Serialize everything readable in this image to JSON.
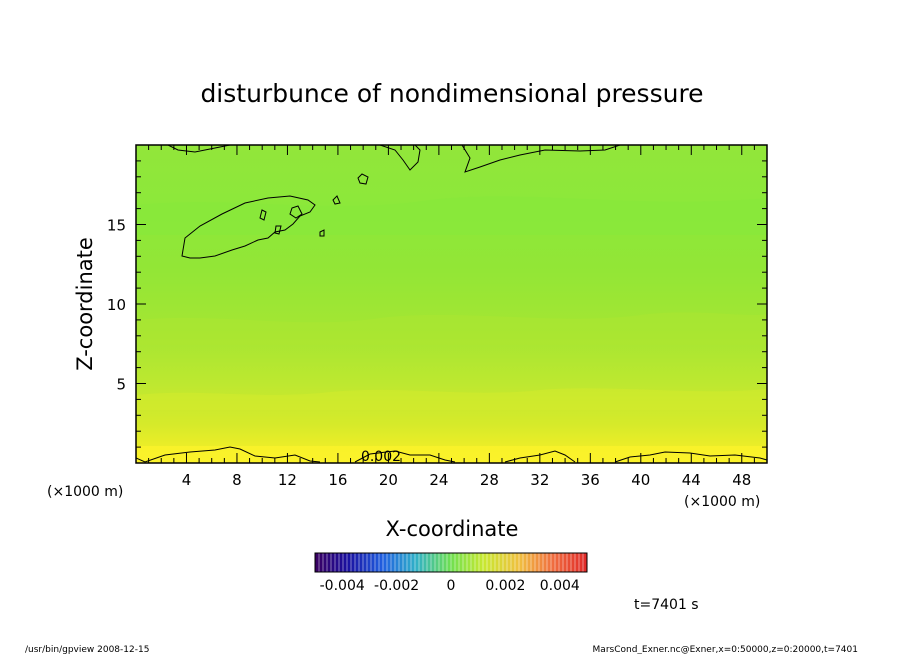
{
  "chart_data": {
    "type": "heatmap",
    "title": "disturbunce of nondimensional pressure",
    "xlabel": "X-coordinate",
    "ylabel": "Z-coordinate",
    "x_unit_left": "(×1000 m)",
    "x_unit_right": "(×1000 m)",
    "xlim": [
      0,
      50
    ],
    "ylim": [
      0,
      20
    ],
    "x_ticks": [
      "4",
      "8",
      "12",
      "16",
      "20",
      "24",
      "28",
      "32",
      "36",
      "40",
      "44",
      "48"
    ],
    "y_ticks": [
      "5",
      "10",
      "15"
    ],
    "x_tick_values": [
      4,
      8,
      12,
      16,
      20,
      24,
      28,
      32,
      36,
      40,
      44,
      48
    ],
    "y_tick_values": [
      5,
      10,
      15
    ],
    "contour_label": "0.002",
    "colorbar": {
      "range": [
        -0.005,
        0.005
      ],
      "tick_labels": [
        "-0.004",
        "-0.002",
        "0",
        "0.002",
        "0.004"
      ],
      "tick_values": [
        -0.004,
        -0.002,
        0,
        0.002,
        0.004
      ]
    },
    "field_estimate": {
      "z_levels": [
        0,
        1,
        2,
        4,
        6,
        8,
        10,
        12,
        14,
        16,
        18,
        20
      ],
      "values": [
        0.0025,
        0.0022,
        0.0017,
        0.0013,
        0.0011,
        0.0009,
        0.0008,
        0.0007,
        0.0006,
        0.0006,
        0.0007,
        0.0007
      ]
    },
    "time_label": "t=7401 s"
  },
  "footer": {
    "left": "/usr/bin/gpview  2008-12-15",
    "right": "MarsCond_Exner.nc@Exner,x=0:50000,z=0:20000,t=7401"
  },
  "colors": {
    "background": "#ffffff",
    "frame": "#000000",
    "field_low": "#85e838",
    "field_high": "#f4ee28"
  }
}
